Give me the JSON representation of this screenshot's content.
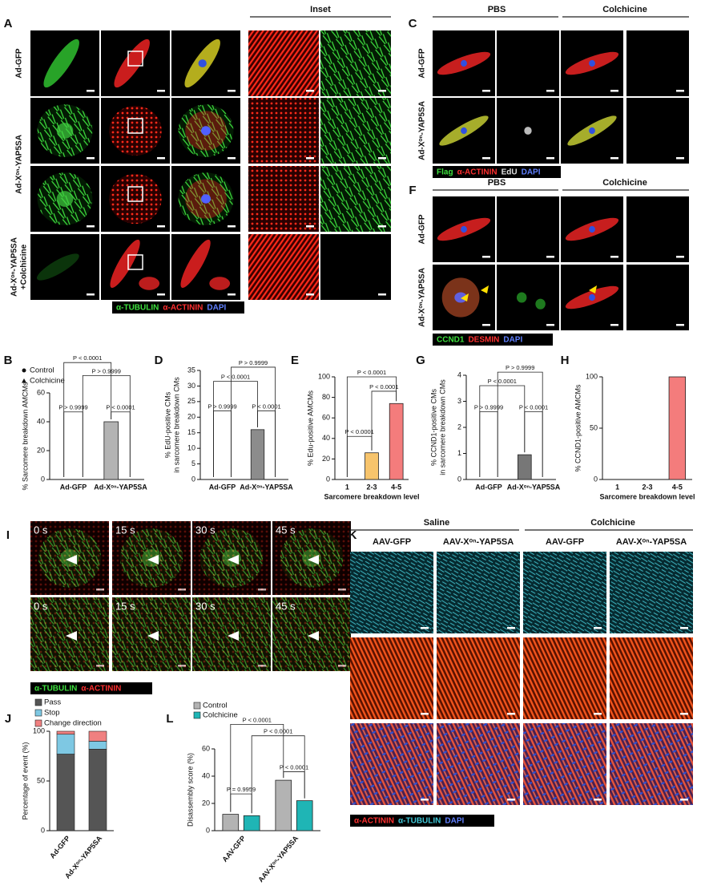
{
  "figure": {
    "A": {
      "letter": "A",
      "inset": "Inset",
      "rows": [
        [
          "Ad-GFP"
        ],
        [
          "Ad-Xᵒⁿ-YAP5SA"
        ],
        [
          "Ad-Xᵒⁿ-YAP5SA",
          "+Colchicine"
        ]
      ],
      "legend": [
        "α-TUBULIN",
        "α-ACTININ",
        "DAPI"
      ]
    },
    "C": {
      "letter": "C",
      "groups": [
        "PBS",
        "Colchicine"
      ],
      "rows": [
        "Ad-GFP",
        "Ad-Xᵒⁿ-YAP5SA"
      ],
      "legend": [
        "Flag",
        "α-ACTININ",
        "EdU",
        "DAPI"
      ]
    },
    "F": {
      "letter": "F",
      "groups": [
        "PBS",
        "Colchicine"
      ],
      "rows": [
        "Ad-GFP",
        "Ad-Xᵒⁿ-YAP5SA"
      ],
      "legend": [
        "CCND1",
        "DESMIN",
        "DAPI"
      ]
    },
    "I": {
      "letter": "I",
      "times": [
        "0 s",
        "15 s",
        "30 s",
        "45 s"
      ],
      "legend": [
        "α-TUBULIN",
        "α-ACTININ"
      ]
    },
    "K": {
      "letter": "K",
      "groups": [
        "Saline",
        "Colchicine"
      ],
      "columns": [
        "AAV-GFP",
        "AAV-Xᵒⁿ-YAP5SA",
        "AAV-GFP",
        "AAV-Xᵒⁿ-YAP5SA"
      ],
      "legend": [
        "α-ACTININ",
        "α-TUBULIN",
        "DAPI"
      ]
    }
  },
  "chart_data": [
    {
      "letter": "B",
      "type": "bar",
      "ylabel": [
        "% Sarcomere breakdown AMCMs"
      ],
      "categories": [
        "Ad-GFP",
        "Ad-Xᵒⁿ-YAP5SA"
      ],
      "series": [
        {
          "name": "Control",
          "color": "#b3b3b3",
          "marker": "circle",
          "values": [
            0,
            40
          ]
        },
        {
          "name": "Colchicine",
          "color": "#ffffff",
          "marker": "triangle",
          "values": [
            0,
            0
          ]
        }
      ],
      "ylim": [
        0,
        60
      ],
      "yticks": [
        0,
        20,
        40,
        60
      ],
      "annotations": [
        "P < 0.0001",
        "P > 0.9999",
        "P > 0.9999",
        "P < 0.0001"
      ]
    },
    {
      "letter": "D",
      "type": "bar",
      "ylabel": [
        "% EdU-positive CMs",
        "in sarcomere breakdown CMs"
      ],
      "categories": [
        "Ad-GFP",
        "Ad-Xᵒⁿ-YAP5SA"
      ],
      "series": [
        {
          "name": "Control",
          "color": "#8c8c8c",
          "values": [
            0,
            16
          ]
        },
        {
          "name": "Colchicine",
          "color": "#ffffff",
          "values": [
            0,
            0
          ]
        }
      ],
      "ylim": [
        0,
        35
      ],
      "yticks": [
        0,
        5,
        10,
        15,
        20,
        25,
        30,
        35
      ],
      "annotations": [
        "P > 0.9999",
        "P < 0.0001",
        "P > 0.9999",
        "P < 0.0001"
      ]
    },
    {
      "letter": "E",
      "type": "bar",
      "ylabel": [
        "% Edu-positive AMCMs"
      ],
      "xlabel": "Sarcomere breakdown level",
      "categories": [
        "1",
        "2-3",
        "4-5"
      ],
      "values": [
        0,
        26,
        74
      ],
      "colors": [
        "#ffffff",
        "#f7c46c",
        "#f47c7c"
      ],
      "ylim": [
        0,
        100
      ],
      "yticks": [
        0,
        20,
        40,
        60,
        80,
        100
      ],
      "annotations": [
        "P < 0.0001",
        "P < 0.0001",
        "P < 0.0001"
      ]
    },
    {
      "letter": "G",
      "type": "bar",
      "ylabel": [
        "% CCND1-positive CMs",
        "in sarcomere breakdown CMs"
      ],
      "categories": [
        "Ad-GFP",
        "Ad-Xᵒⁿ-YAP5SA"
      ],
      "series": [
        {
          "name": "Control",
          "color": "#777777",
          "values": [
            0,
            0.95
          ]
        },
        {
          "name": "Colchicine",
          "color": "#ffffff",
          "values": [
            0,
            0
          ]
        }
      ],
      "ylim": [
        0,
        4
      ],
      "yticks": [
        0,
        1,
        2,
        3,
        4
      ],
      "annotations": [
        "P > 0.9999",
        "P < 0.0001",
        "P > 0.9999",
        "P < 0.0001"
      ]
    },
    {
      "letter": "H",
      "type": "bar",
      "ylabel": [
        "% CCND1-positive AMCMs"
      ],
      "xlabel": "Sarcomere breakdown level",
      "categories": [
        "1",
        "2-3",
        "4-5"
      ],
      "values": [
        0,
        0,
        100
      ],
      "colors": [
        "#ffffff",
        "#ffffff",
        "#f47c7c"
      ],
      "ylim": [
        0,
        100
      ],
      "yticks": [
        0,
        50,
        100
      ]
    },
    {
      "letter": "J",
      "type": "bar",
      "stacked": true,
      "ylabel": [
        "Percentage of event (%)"
      ],
      "categories": [
        "Ad-GFP",
        "Ad-Xᵒⁿ-YAP5SA"
      ],
      "series": [
        {
          "name": "Pass",
          "color": "#555555",
          "values": [
            77,
            82
          ]
        },
        {
          "name": "Stop",
          "color": "#7ec8e3",
          "values": [
            20,
            8
          ]
        },
        {
          "name": "Change direction",
          "color": "#f08080",
          "values": [
            3,
            10
          ]
        }
      ],
      "ylim": [
        0,
        100
      ],
      "yticks": [
        0,
        50,
        100
      ]
    },
    {
      "letter": "L",
      "type": "bar",
      "ylabel": [
        "Disassembly score (%)"
      ],
      "categories": [
        "AAV-GFP",
        "AAV-Xᵒⁿ-YAP5SA"
      ],
      "series": [
        {
          "name": "Control",
          "color": "#b3b3b3",
          "values": [
            12,
            37
          ]
        },
        {
          "name": "Colchicine",
          "color": "#1fb5b5",
          "values": [
            11,
            22
          ]
        }
      ],
      "ylim": [
        0,
        60
      ],
      "yticks": [
        0,
        20,
        40,
        60
      ],
      "annotations": [
        "P < 0.0001",
        "P < 0.0001",
        "P = 0.9959",
        "P < 0.0001"
      ]
    }
  ]
}
